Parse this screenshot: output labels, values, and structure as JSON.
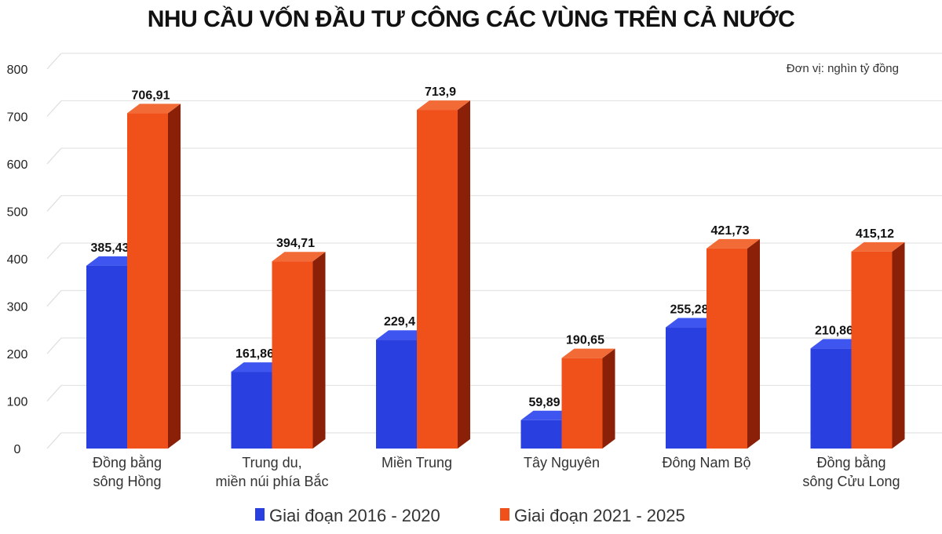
{
  "chart_data": {
    "type": "bar",
    "title": "NHU CẦU VỐN ĐẦU TƯ CÔNG CÁC VÙNG TRÊN CẢ NƯỚC",
    "unit_note": "Đơn vị: nghìn tỷ đồng",
    "categories": [
      [
        "Đồng bằng",
        "sông Hồng"
      ],
      [
        "Trung du,",
        "miền núi phía Bắc"
      ],
      [
        "Miền Trung"
      ],
      [
        "Tây Nguyên"
      ],
      [
        "Đông Nam Bộ"
      ],
      [
        "Đồng bằng",
        "sông Cửu Long"
      ]
    ],
    "series": [
      {
        "name": "Giai đoạn 2016 - 2020",
        "color": "#2a3fe0",
        "side": "#1a2696",
        "top": "#3f55f0",
        "values": [
          385.43,
          161.86,
          229.4,
          59.89,
          255.28,
          210.86
        ],
        "labels": [
          "385,43",
          "161,86",
          "229,4",
          "59,89",
          "255,28",
          "210,86"
        ]
      },
      {
        "name": "Giai đoạn 2021 - 2025",
        "color": "#f0501a",
        "side": "#8a2008",
        "top": "#f26a35",
        "values": [
          706.91,
          394.71,
          713.9,
          190.65,
          421.73,
          415.12
        ],
        "labels": [
          "706,91",
          "394,71",
          "713,9",
          "190,65",
          "421,73",
          "415,12"
        ]
      }
    ],
    "ylim": [
      0,
      800
    ],
    "yticks": [
      0,
      100,
      200,
      300,
      400,
      500,
      600,
      700,
      800
    ],
    "grid": true,
    "legend": "bottom"
  }
}
